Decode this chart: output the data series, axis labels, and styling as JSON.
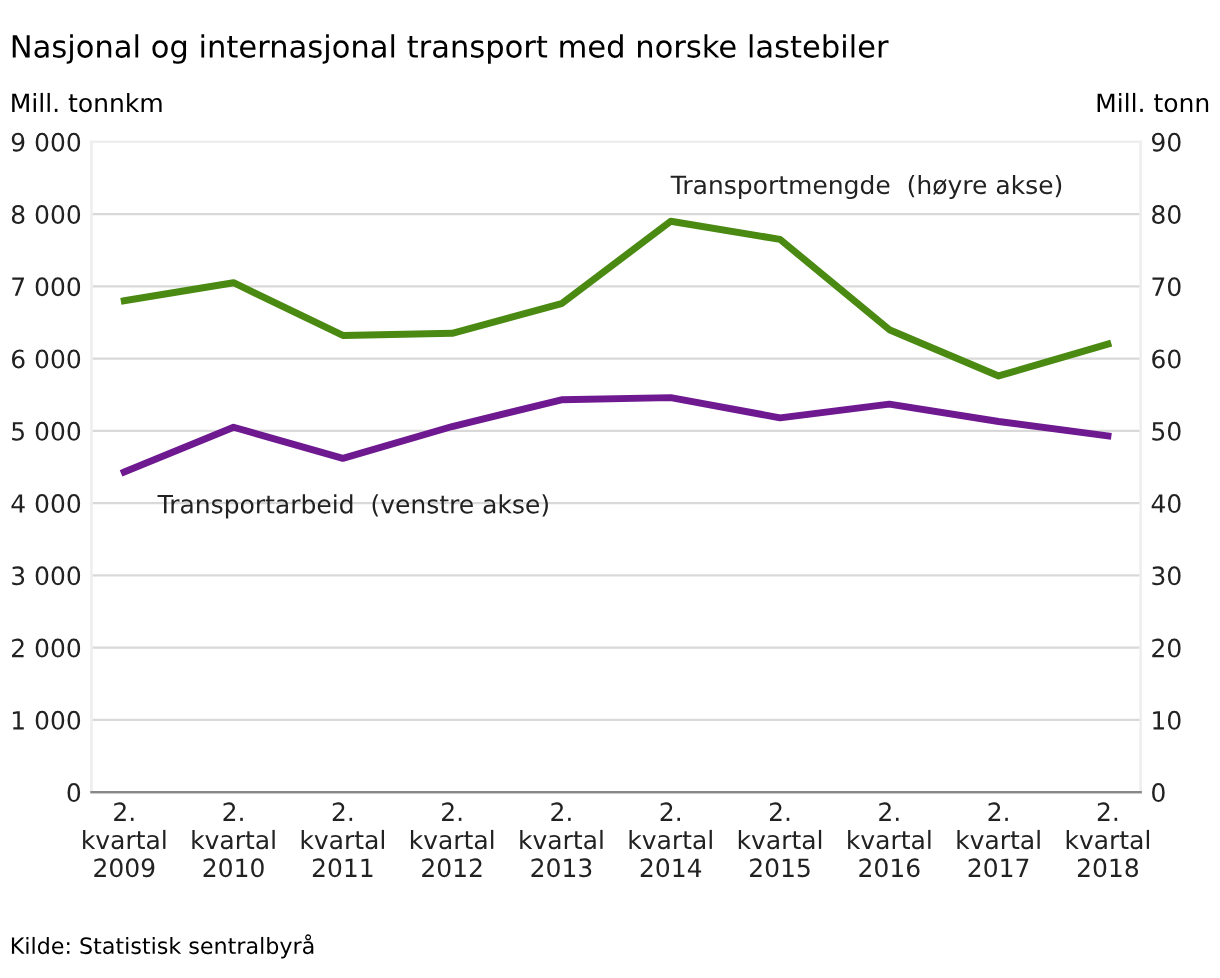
{
  "chart_data": {
    "type": "line",
    "title": "Nasjonal og internasjonal transport med norske lastebiler",
    "ylabel": "Mill. tonnkm",
    "y2label": "Mill. tonn",
    "categories": [
      "2.\nkvartal\n2009",
      "2.\nkvartal\n2010",
      "2.\nkvartal\n2011",
      "2.\nkvartal\n2012",
      "2.\nkvartal\n2013",
      "2.\nkvartal\n2014",
      "2.\nkvartal\n2015",
      "2.\nkvartal\n2016",
      "2.\nkvartal\n2017",
      "2.\nkvartal\n2018"
    ],
    "series": [
      {
        "name": "Transportmengde  (høyre akse)",
        "color": "#4b8a12",
        "axis": "y2",
        "values": [
          68,
          70.5,
          63.2,
          63.5,
          67.6,
          79,
          76.5,
          64,
          57.6,
          62
        ]
      },
      {
        "name": "Transportarbeid  (venstre akse)",
        "color": "#6f1991",
        "values": [
          4430,
          5050,
          4620,
          5060,
          5430,
          5460,
          5180,
          5370,
          5130,
          4930
        ]
      }
    ],
    "ylim": [
      0,
      9000
    ],
    "yticks": [
      0,
      {
        "value": 1000,
        "label": "1 000"
      },
      {
        "value": 2000,
        "label": "2 000"
      },
      {
        "value": 3000,
        "label": "3 000"
      },
      {
        "value": 4000,
        "label": "4 000"
      },
      {
        "value": 5000,
        "label": "5 000"
      },
      {
        "value": 6000,
        "label": "6 000"
      },
      {
        "value": 7000,
        "label": "7 000"
      },
      {
        "value": 8000,
        "label": "8 000"
      },
      {
        "value": 9000,
        "label": "9 000"
      }
    ],
    "y2lim": [
      0,
      90
    ],
    "y2ticks": [
      0,
      10,
      20,
      30,
      40,
      50,
      60,
      70,
      80,
      90
    ],
    "grid": "y",
    "legend": false,
    "annotations": [
      "Kilde: Statistisk sentralbyrå"
    ]
  }
}
